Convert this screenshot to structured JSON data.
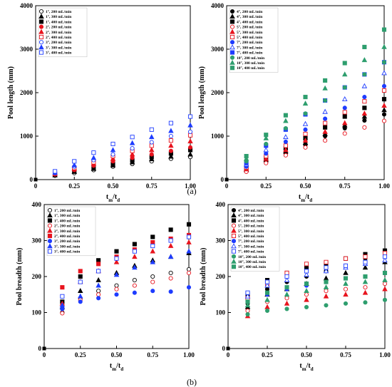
{
  "panel_labels": [
    "(a)",
    "(b)"
  ],
  "chart_data": [
    {
      "type": "scatter",
      "xlabel": "t_m/t_d",
      "ylabel": "Pool length (mm)",
      "xlim": [
        0,
        1
      ],
      "ylim": [
        0,
        4000
      ],
      "xticks": [
        "0",
        "0.25",
        "0.50",
        "0.75",
        "1.00"
      ],
      "yticks": [
        "0",
        "1000",
        "2000",
        "3000",
        "4000"
      ],
      "legend_position": "top-left",
      "x": [
        0.125,
        0.25,
        0.375,
        0.5,
        0.625,
        0.75,
        0.875,
        1.0
      ],
      "series": [
        {
          "name": "1°, 200 mL/min",
          "marker": "circle-open",
          "color": "#000000",
          "values": [
            90,
            150,
            220,
            300,
            360,
            420,
            480,
            520
          ]
        },
        {
          "name": "1°, 300 mL/min",
          "marker": "triangle-filled",
          "color": "#000000",
          "values": [
            100,
            180,
            250,
            330,
            400,
            470,
            530,
            580
          ]
        },
        {
          "name": "1°, 400 mL/min",
          "marker": "square-filled",
          "color": "#000000",
          "values": [
            110,
            200,
            280,
            360,
            440,
            520,
            600,
            680
          ]
        },
        {
          "name": "2°, 200 mL/min",
          "marker": "circle-filled",
          "color": "#e8141e",
          "values": [
            120,
            220,
            320,
            420,
            500,
            580,
            660,
            740
          ]
        },
        {
          "name": "2°, 300 mL/min",
          "marker": "triangle-filled",
          "color": "#e8141e",
          "values": [
            130,
            250,
            370,
            480,
            580,
            680,
            780,
            880
          ]
        },
        {
          "name": "2°, 400 mL/min",
          "marker": "square-open",
          "color": "#e8141e",
          "values": [
            140,
            270,
            400,
            540,
            660,
            780,
            900,
            1020
          ]
        },
        {
          "name": "3°, 200 mL/min",
          "marker": "circle-open",
          "color": "#1e3cff",
          "values": [
            150,
            300,
            450,
            580,
            720,
            860,
            1000,
            1100
          ]
        },
        {
          "name": "3°, 300 mL/min",
          "marker": "triangle-filled",
          "color": "#1e3cff",
          "values": [
            160,
            330,
            500,
            680,
            840,
            980,
            1120,
            1250
          ]
        },
        {
          "name": "3°, 400 mL/min",
          "marker": "square-open",
          "color": "#1e3cff",
          "values": [
            190,
            420,
            620,
            820,
            980,
            1150,
            1300,
            1450
          ]
        }
      ]
    },
    {
      "type": "scatter",
      "xlabel": "t_m/t_d",
      "ylabel": "Pool length (mm)",
      "xlim": [
        0,
        1
      ],
      "ylim": [
        0,
        4000
      ],
      "xticks": [
        "0",
        "0.25",
        "0.50",
        "0.75",
        "1.00"
      ],
      "yticks": [
        "0",
        "1000",
        "2000",
        "3000",
        "4000"
      ],
      "legend_position": "top-left",
      "x": [
        0.125,
        0.25,
        0.375,
        0.5,
        0.625,
        0.75,
        0.875,
        1.0
      ],
      "series": [
        {
          "name": "4°, 200 mL/min",
          "marker": "circle-filled",
          "color": "#000000",
          "values": [
            200,
            420,
            600,
            800,
            1000,
            1180,
            1360,
            1500
          ]
        },
        {
          "name": "4°, 300 mL/min",
          "marker": "triangle-filled",
          "color": "#000000",
          "values": [
            220,
            450,
            650,
            850,
            1050,
            1250,
            1450,
            1600
          ]
        },
        {
          "name": "4°, 400 mL/min",
          "marker": "square-filled",
          "color": "#000000",
          "values": [
            250,
            500,
            720,
            950,
            1200,
            1450,
            1650,
            1850
          ]
        },
        {
          "name": "5°, 200 mL/min",
          "marker": "circle-open",
          "color": "#e8141e",
          "values": [
            180,
            380,
            560,
            740,
            900,
            1060,
            1200,
            1350
          ]
        },
        {
          "name": "5°, 300 mL/min",
          "marker": "triangle-filled",
          "color": "#e8141e",
          "values": [
            240,
            480,
            680,
            900,
            1100,
            1300,
            1520,
            1700
          ]
        },
        {
          "name": "5°, 400 mL/min",
          "marker": "square-open",
          "color": "#e8141e",
          "values": [
            280,
            540,
            780,
            1050,
            1300,
            1550,
            1800,
            2050
          ]
        },
        {
          "name": "7°, 200 mL/min",
          "marker": "circle-filled",
          "color": "#1e3cff",
          "values": [
            300,
            600,
            870,
            1150,
            1400,
            1650,
            1900,
            2150
          ]
        },
        {
          "name": "7°, 300 mL/min",
          "marker": "triangle-open",
          "color": "#1e3cff",
          "values": [
            350,
            680,
            980,
            1280,
            1560,
            1850,
            2150,
            2450
          ]
        },
        {
          "name": "7°, 400 mL/min",
          "marker": "square-filled",
          "color": "#1e3cff",
          "values": [
            380,
            780,
            1150,
            1500,
            1820,
            2120,
            2420,
            2700
          ]
        },
        {
          "name": "10°, 200 mL/min",
          "marker": "circle-filled",
          "color": "#2e9e6e",
          "values": [
            420,
            820,
            1180,
            1520,
            1820,
            2120,
            2420,
            2700
          ]
        },
        {
          "name": "10°, 300 mL/min",
          "marker": "triangle-filled",
          "color": "#2e9e6e",
          "values": [
            480,
            950,
            1350,
            1750,
            2100,
            2420,
            2750,
            3050
          ]
        },
        {
          "name": "10°, 400 mL/min",
          "marker": "square-filled",
          "color": "#2e9e6e",
          "values": [
            540,
            1030,
            1480,
            1900,
            2280,
            2680,
            3050,
            3450
          ]
        }
      ]
    },
    {
      "type": "scatter",
      "xlabel": "t_m/t_d",
      "ylabel": "Pool breadth (mm)",
      "xlim": [
        0,
        1
      ],
      "ylim": [
        0,
        400
      ],
      "xticks": [
        "0",
        "0.25",
        "0.50",
        "0.75",
        "1.00"
      ],
      "yticks": [
        "0",
        "100",
        "200",
        "300",
        "400"
      ],
      "legend_position": "top-left",
      "x": [
        0.125,
        0.25,
        0.375,
        0.5,
        0.625,
        0.75,
        0.875,
        1.0
      ],
      "series": [
        {
          "name": "1°, 200 mL/min",
          "marker": "circle-open",
          "color": "#000000",
          "values": [
            100,
            140,
            160,
            175,
            190,
            200,
            210,
            220
          ]
        },
        {
          "name": "1°, 300 mL/min",
          "marker": "triangle-filled",
          "color": "#000000",
          "values": [
            115,
            160,
            190,
            210,
            230,
            245,
            255,
            265
          ]
        },
        {
          "name": "1°, 400 mL/min",
          "marker": "square-filled",
          "color": "#000000",
          "values": [
            130,
            200,
            245,
            270,
            290,
            310,
            330,
            345
          ]
        },
        {
          "name": "2°, 200 mL/min",
          "marker": "circle-open",
          "color": "#e8141e",
          "values": [
            98,
            135,
            150,
            165,
            175,
            185,
            195,
            210
          ]
        },
        {
          "name": "2°, 300 mL/min",
          "marker": "triangle-filled",
          "color": "#e8141e",
          "values": [
            125,
            185,
            215,
            240,
            255,
            270,
            285,
            295
          ]
        },
        {
          "name": "2°, 400 mL/min",
          "marker": "square-filled",
          "color": "#e8141e",
          "values": [
            170,
            215,
            235,
            255,
            275,
            295,
            305,
            315
          ]
        },
        {
          "name": "3°, 200 mL/min",
          "marker": "circle-filled",
          "color": "#1e3cff",
          "values": [
            110,
            130,
            140,
            150,
            155,
            160,
            158,
            170
          ]
        },
        {
          "name": "3°, 300 mL/min",
          "marker": "triangle-filled",
          "color": "#1e3cff",
          "values": [
            120,
            145,
            175,
            205,
            225,
            240,
            255,
            270
          ]
        },
        {
          "name": "3°, 400 mL/min",
          "marker": "square-open",
          "color": "#1e3cff",
          "values": [
            145,
            185,
            215,
            250,
            270,
            285,
            300,
            310
          ]
        }
      ]
    },
    {
      "type": "scatter",
      "xlabel": "t_m/t_d",
      "ylabel": "Pool breadth (mm)",
      "xlim": [
        0,
        1
      ],
      "ylim": [
        0,
        400
      ],
      "xticks": [
        "0",
        "0.25",
        "0.50",
        "0.75",
        "1.00"
      ],
      "yticks": [
        "0",
        "100",
        "200",
        "300",
        "400"
      ],
      "legend_position": "top-left",
      "x": [
        0.125,
        0.25,
        0.375,
        0.5,
        0.625,
        0.75,
        0.875,
        1.0
      ],
      "series": [
        {
          "name": "4°, 200 mL/min",
          "marker": "circle-filled",
          "color": "#000000",
          "values": [
            125,
            165,
            185,
            200,
            215,
            230,
            250,
            270
          ]
        },
        {
          "name": "4°, 300 mL/min",
          "marker": "triangle-filled",
          "color": "#000000",
          "values": [
            115,
            150,
            165,
            180,
            195,
            210,
            225,
            240
          ]
        },
        {
          "name": "4°, 400 mL/min",
          "marker": "square-filled",
          "color": "#000000",
          "values": [
            150,
            190,
            210,
            225,
            235,
            250,
            262,
            272
          ]
        },
        {
          "name": "5°, 200 mL/min",
          "marker": "circle-open",
          "color": "#e8141e",
          "values": [
            105,
            130,
            140,
            150,
            160,
            165,
            170,
            180
          ]
        },
        {
          "name": "5°, 300 mL/min",
          "marker": "triangle-filled",
          "color": "#e8141e",
          "values": [
            90,
            115,
            125,
            135,
            145,
            150,
            155,
            165
          ]
        },
        {
          "name": "5°, 400 mL/min",
          "marker": "square-open",
          "color": "#e8141e",
          "values": [
            140,
            180,
            210,
            235,
            240,
            250,
            255,
            265
          ]
        },
        {
          "name": "7°, 200 mL/min",
          "marker": "circle-filled",
          "color": "#1e3cff",
          "values": [
            130,
            150,
            165,
            175,
            185,
            195,
            200,
            210
          ]
        },
        {
          "name": "7°, 300 mL/min",
          "marker": "triangle-open",
          "color": "#1e3cff",
          "values": [
            145,
            175,
            190,
            205,
            215,
            225,
            235,
            245
          ]
        },
        {
          "name": "7°, 400 mL/min",
          "marker": "square-open",
          "color": "#1e3cff",
          "values": [
            155,
            185,
            200,
            215,
            225,
            230,
            240,
            255
          ]
        },
        {
          "name": "10°, 200 mL/min",
          "marker": "circle-filled",
          "color": "#2e9e6e",
          "values": [
            95,
            105,
            110,
            115,
            120,
            125,
            128,
            135
          ]
        },
        {
          "name": "10°, 300 mL/min",
          "marker": "triangle-filled",
          "color": "#2e9e6e",
          "values": [
            120,
            135,
            150,
            160,
            170,
            180,
            185,
            190
          ]
        },
        {
          "name": "10°, 400 mL/min",
          "marker": "square-filled",
          "color": "#2e9e6e",
          "values": [
            130,
            155,
            170,
            180,
            185,
            195,
            200,
            210
          ]
        }
      ]
    }
  ]
}
